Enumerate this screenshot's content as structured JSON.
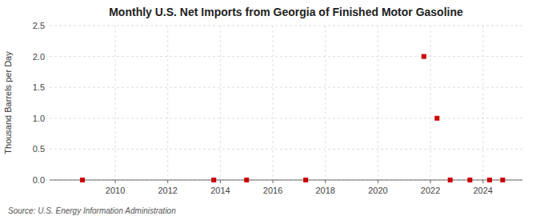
{
  "chart_data": {
    "type": "scatter",
    "title": "Monthly U.S. Net Imports from Georgia of Finished Motor Gasoline",
    "y_label": "Thousand Barrels per Day",
    "annotations": [
      "Source: U.S. Energy Information Administration"
    ],
    "x": [
      2008.75,
      2013.75,
      2015.0,
      2017.25,
      2021.75,
      2022.25,
      2022.75,
      2023.5,
      2024.25,
      2024.75
    ],
    "values": [
      0.0,
      0.0,
      0.0,
      0.0,
      2.0,
      1.0,
      0.0,
      0.0,
      0.0,
      0.0
    ],
    "color": "#cc0000",
    "marker": "square",
    "xlim": [
      2007.5,
      2025.5
    ],
    "xticks": [
      2010,
      2012,
      2014,
      2016,
      2018,
      2020,
      2022,
      2024
    ],
    "ylim": [
      0.0,
      2.5
    ],
    "yticks": [
      {
        "value": 0.0,
        "label": "0.0"
      },
      0.5,
      {
        "value": 1.0,
        "label": "1.0"
      },
      1.5,
      {
        "value": 2.0,
        "label": "2.0"
      },
      2.5
    ],
    "grid": true
  }
}
